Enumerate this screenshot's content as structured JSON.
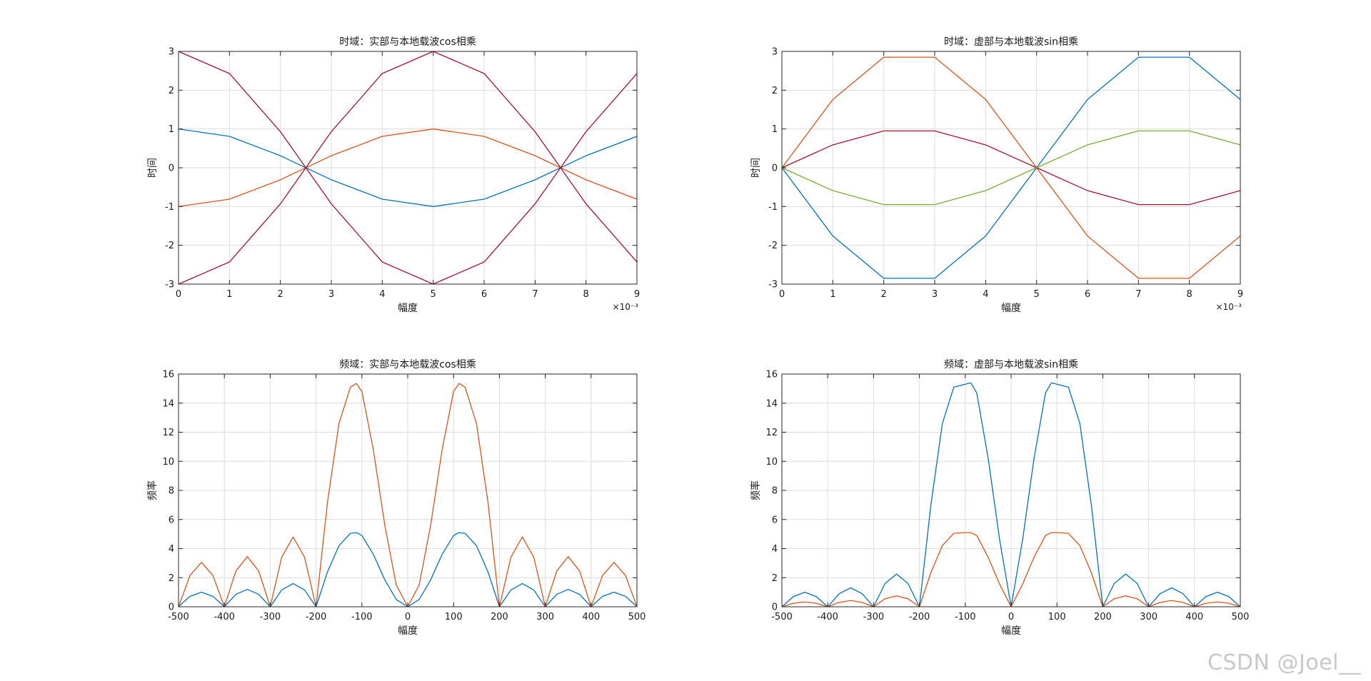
{
  "watermark": "CSDN @Joel__",
  "colors": {
    "blue": "#0072BD",
    "orange": "#D95319",
    "green": "#77AC30",
    "maroon": "#A2142F"
  },
  "chart_data": [
    {
      "type": "line",
      "title": "时域：实部与本地载波cos相乘",
      "xlabel": "幅度",
      "ylabel": "时间",
      "x_exponent": "×10⁻³",
      "xlim": [
        0,
        9
      ],
      "ylim": [
        -3,
        3
      ],
      "xticks": [
        0,
        1,
        2,
        3,
        4,
        5,
        6,
        7,
        8,
        9
      ],
      "xtick_labels": [
        "0",
        "1",
        "2",
        "3",
        "4",
        "5",
        "6",
        "7",
        "8",
        "9"
      ],
      "yticks": [
        -3,
        -2,
        -1,
        0,
        1,
        2,
        3
      ],
      "ytick_labels": [
        "-3",
        "-2",
        "-1",
        "0",
        "1",
        "2",
        "3"
      ],
      "grid": true,
      "x": [
        0,
        1,
        2,
        3,
        4,
        5,
        6,
        7,
        8,
        9
      ],
      "series": [
        {
          "color": "#0072BD",
          "values": [
            1,
            0.81,
            0.31,
            -0.31,
            -0.81,
            -1,
            -0.81,
            -0.31,
            0.31,
            0.81
          ]
        },
        {
          "color": "#D95319",
          "values": [
            -1,
            -0.81,
            -0.31,
            0.31,
            0.81,
            1,
            0.81,
            0.31,
            -0.31,
            -0.81
          ]
        },
        {
          "color": "#A2142F",
          "values": [
            3,
            2.43,
            0.93,
            -0.93,
            -2.43,
            -3,
            -2.43,
            -0.93,
            0.93,
            2.43
          ]
        },
        {
          "color": "#A2142F",
          "values": [
            -3,
            -2.43,
            -0.93,
            0.93,
            2.43,
            3,
            2.43,
            0.93,
            -0.93,
            -2.43
          ]
        }
      ]
    },
    {
      "type": "line",
      "title": "时域：虚部与本地载波sin相乘",
      "xlabel": "幅度",
      "ylabel": "时间",
      "x_exponent": "×10⁻³",
      "xlim": [
        0,
        9
      ],
      "ylim": [
        -3,
        3
      ],
      "xticks": [
        0,
        1,
        2,
        3,
        4,
        5,
        6,
        7,
        8,
        9
      ],
      "xtick_labels": [
        "0",
        "1",
        "2",
        "3",
        "4",
        "5",
        "6",
        "7",
        "8",
        "9"
      ],
      "yticks": [
        -3,
        -2,
        -1,
        0,
        1,
        2,
        3
      ],
      "ytick_labels": [
        "-3",
        "-2",
        "-1",
        "0",
        "1",
        "2",
        "3"
      ],
      "grid": true,
      "x": [
        0,
        1,
        2,
        3,
        4,
        5,
        6,
        7,
        8,
        9
      ],
      "series": [
        {
          "color": "#0072BD",
          "values": [
            0,
            -1.76,
            -2.85,
            -2.85,
            -1.76,
            0,
            1.76,
            2.85,
            2.85,
            1.76
          ]
        },
        {
          "color": "#D95319",
          "values": [
            0,
            1.76,
            2.85,
            2.85,
            1.76,
            0,
            -1.76,
            -2.85,
            -2.85,
            -1.76
          ]
        },
        {
          "color": "#A2142F",
          "values": [
            0,
            0.59,
            0.95,
            0.95,
            0.59,
            0,
            -0.59,
            -0.95,
            -0.95,
            -0.59
          ]
        },
        {
          "color": "#77AC30",
          "values": [
            0,
            -0.59,
            -0.95,
            -0.95,
            -0.59,
            0,
            0.59,
            0.95,
            0.95,
            0.59
          ]
        }
      ]
    },
    {
      "type": "line",
      "title": "频域：实部与本地载波cos相乘",
      "xlabel": "幅度",
      "ylabel": "频率",
      "xlim": [
        -500,
        500
      ],
      "ylim": [
        0,
        16
      ],
      "xticks": [
        -500,
        -400,
        -300,
        -200,
        -100,
        0,
        100,
        200,
        300,
        400,
        500
      ],
      "xtick_labels": [
        "-500",
        "-400",
        "-300",
        "-200",
        "-100",
        "0",
        "100",
        "200",
        "300",
        "400",
        "500"
      ],
      "yticks": [
        0,
        2,
        4,
        6,
        8,
        10,
        12,
        14,
        16
      ],
      "ytick_labels": [
        "0",
        "2",
        "4",
        "6",
        "8",
        "10",
        "12",
        "14",
        "16"
      ],
      "grid": true,
      "x": [
        -500,
        -475,
        -450,
        -425,
        -400,
        -375,
        -350,
        -325,
        -300,
        -275,
        -250,
        -225,
        -200,
        -175,
        -150,
        -125,
        -112,
        -100,
        -75,
        -50,
        -25,
        0,
        25,
        50,
        75,
        100,
        112,
        125,
        150,
        175,
        200,
        225,
        250,
        275,
        300,
        325,
        350,
        375,
        400,
        425,
        450,
        475,
        500
      ],
      "series": [
        {
          "color": "#0072BD",
          "values": [
            0,
            0.72,
            1,
            0.72,
            0,
            0.85,
            1.2,
            0.85,
            0,
            1.15,
            1.6,
            1.15,
            0,
            2.4,
            4.2,
            5.05,
            5.1,
            4.9,
            3.6,
            1.85,
            0.5,
            0,
            0.5,
            1.85,
            3.6,
            4.9,
            5.1,
            5.05,
            4.2,
            2.4,
            0,
            1.15,
            1.6,
            1.15,
            0,
            0.85,
            1.2,
            0.85,
            0,
            0.72,
            1,
            0.72,
            0
          ]
        },
        {
          "color": "#D95319",
          "values": [
            0,
            2.15,
            3.05,
            2.15,
            0,
            2.45,
            3.45,
            2.45,
            0,
            3.4,
            4.8,
            3.4,
            0,
            7.2,
            12.6,
            15.1,
            15.35,
            14.8,
            10.8,
            5.6,
            1.5,
            0,
            1.5,
            5.6,
            10.8,
            14.8,
            15.35,
            15.1,
            12.6,
            7.2,
            0,
            3.4,
            4.8,
            3.4,
            0,
            2.45,
            3.45,
            2.45,
            0,
            2.15,
            3.05,
            2.15,
            0
          ]
        }
      ]
    },
    {
      "type": "line",
      "title": "频域：虚部与本地载波sin相乘",
      "xlabel": "幅度",
      "ylabel": "频率",
      "xlim": [
        -500,
        500
      ],
      "ylim": [
        0,
        16
      ],
      "xticks": [
        -500,
        -400,
        -300,
        -200,
        -100,
        0,
        100,
        200,
        300,
        400,
        500
      ],
      "xtick_labels": [
        "-500",
        "-400",
        "-300",
        "-200",
        "-100",
        "0",
        "100",
        "200",
        "300",
        "400",
        "500"
      ],
      "yticks": [
        0,
        2,
        4,
        6,
        8,
        10,
        12,
        14,
        16
      ],
      "ytick_labels": [
        "0",
        "2",
        "4",
        "6",
        "8",
        "10",
        "12",
        "14",
        "16"
      ],
      "grid": true,
      "x": [
        -500,
        -475,
        -450,
        -425,
        -400,
        -375,
        -350,
        -325,
        -300,
        -275,
        -250,
        -225,
        -200,
        -175,
        -150,
        -125,
        -100,
        -88,
        -75,
        -50,
        -25,
        0,
        25,
        50,
        75,
        88,
        100,
        125,
        150,
        175,
        200,
        225,
        250,
        275,
        300,
        325,
        350,
        375,
        400,
        425,
        450,
        475,
        500
      ],
      "series": [
        {
          "color": "#0072BD",
          "values": [
            0,
            0.7,
            1,
            0.7,
            0,
            0.9,
            1.3,
            0.9,
            0,
            1.6,
            2.25,
            1.6,
            0,
            7,
            12.6,
            15.1,
            15.3,
            15.4,
            14.7,
            10.2,
            4.6,
            0,
            4.6,
            10.2,
            14.7,
            15.4,
            15.3,
            15.1,
            12.6,
            7,
            0,
            1.6,
            2.25,
            1.6,
            0,
            0.9,
            1.3,
            0.9,
            0,
            0.7,
            1,
            0.7,
            0
          ]
        },
        {
          "color": "#D95319",
          "values": [
            0,
            0.24,
            0.33,
            0.24,
            0,
            0.3,
            0.43,
            0.3,
            0,
            0.55,
            0.75,
            0.55,
            0,
            2.35,
            4.2,
            5.05,
            5.1,
            5.1,
            4.9,
            3.4,
            1.55,
            0,
            1.55,
            3.4,
            4.9,
            5.1,
            5.1,
            5.05,
            4.2,
            2.35,
            0,
            0.55,
            0.75,
            0.55,
            0,
            0.3,
            0.43,
            0.3,
            0,
            0.24,
            0.33,
            0.24,
            0
          ]
        }
      ]
    }
  ]
}
